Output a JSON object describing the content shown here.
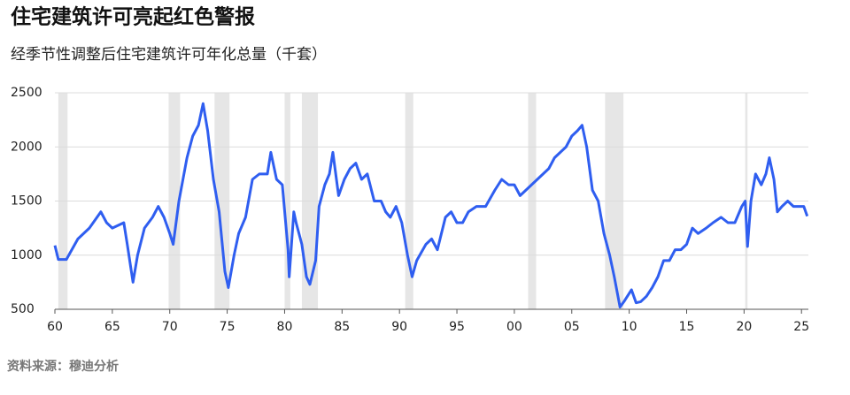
{
  "chart_data": {
    "type": "line",
    "title": "住宅建筑许可亮起红色警报",
    "subtitle": "经季节性调整后住宅建筑许可年化总量（千套）",
    "source": "资料来源：穆迪分析",
    "color": "#2f5ef0",
    "grid": true,
    "shade_color": "#e6e6e6",
    "recession_bands": [
      [
        1960.3,
        1961.1
      ],
      [
        1969.9,
        1970.9
      ],
      [
        1973.9,
        1975.2
      ],
      [
        1980.0,
        1980.5
      ],
      [
        1981.5,
        1982.9
      ],
      [
        1990.5,
        1991.2
      ],
      [
        2001.2,
        2001.9
      ],
      [
        2007.9,
        2009.5
      ],
      [
        2020.1,
        2020.3
      ]
    ],
    "xlim": [
      1960,
      2025.6
    ],
    "xticks": [
      {
        "value": 1960,
        "label": "60"
      },
      {
        "value": 1965,
        "label": "65"
      },
      {
        "value": 1970,
        "label": "70"
      },
      {
        "value": 1975,
        "label": "75"
      },
      {
        "value": 1980,
        "label": "80"
      },
      {
        "value": 1985,
        "label": "85"
      },
      {
        "value": 1990,
        "label": "90"
      },
      {
        "value": 1995,
        "label": "95"
      },
      {
        "value": 2000,
        "label": "00"
      },
      {
        "value": 2005,
        "label": "05"
      },
      {
        "value": 2010,
        "label": "10"
      },
      {
        "value": 2015,
        "label": "15"
      },
      {
        "value": 2020,
        "label": "20"
      },
      {
        "value": 2025,
        "label": "25"
      }
    ],
    "ylim": [
      500,
      2500
    ],
    "yticks": [
      500,
      1000,
      1500,
      2000,
      2500
    ],
    "x": [
      1960.0,
      1960.3,
      1961.0,
      1962.0,
      1963.0,
      1964.0,
      1964.5,
      1965.0,
      1966.0,
      1966.3,
      1966.8,
      1967.2,
      1967.8,
      1968.5,
      1969.0,
      1969.5,
      1970.0,
      1970.3,
      1970.8,
      1971.5,
      1972.0,
      1972.5,
      1972.9,
      1973.3,
      1973.8,
      1974.3,
      1974.8,
      1975.1,
      1975.6,
      1976.0,
      1976.6,
      1977.2,
      1977.8,
      1978.5,
      1978.8,
      1979.3,
      1979.8,
      1980.3,
      1980.4,
      1980.8,
      1981.0,
      1981.5,
      1981.9,
      1982.2,
      1982.7,
      1983.0,
      1983.5,
      1983.9,
      1984.2,
      1984.7,
      1985.2,
      1985.7,
      1986.2,
      1986.7,
      1987.2,
      1987.8,
      1988.4,
      1988.8,
      1989.2,
      1989.7,
      1990.2,
      1990.7,
      1991.1,
      1991.5,
      1992.3,
      1992.8,
      1993.3,
      1994.0,
      1994.5,
      1995.0,
      1995.5,
      1996.0,
      1996.7,
      1997.5,
      1998.3,
      1998.9,
      1999.5,
      2000.0,
      2000.5,
      2001.0,
      2001.5,
      2002.0,
      2002.5,
      2003.0,
      2003.5,
      2004.0,
      2004.5,
      2005.0,
      2005.5,
      2005.9,
      2006.3,
      2006.8,
      2007.3,
      2007.8,
      2008.3,
      2008.7,
      2009.2,
      2009.6,
      2010.2,
      2010.6,
      2011.0,
      2011.5,
      2012.0,
      2012.5,
      2013.0,
      2013.5,
      2014.0,
      2014.5,
      2015.0,
      2015.5,
      2016.0,
      2016.7,
      2017.3,
      2018.0,
      2018.6,
      2019.2,
      2019.8,
      2020.1,
      2020.3,
      2020.6,
      2021.0,
      2021.5,
      2021.9,
      2022.2,
      2022.6,
      2022.9,
      2023.3,
      2023.8,
      2024.3,
      2024.8,
      2025.2,
      2025.5
    ],
    "values": [
      1090,
      960,
      960,
      1150,
      1250,
      1400,
      1300,
      1250,
      1300,
      1100,
      750,
      1000,
      1250,
      1350,
      1450,
      1350,
      1200,
      1100,
      1500,
      1900,
      2100,
      2200,
      2400,
      2150,
      1700,
      1400,
      850,
      700,
      1000,
      1200,
      1350,
      1700,
      1750,
      1750,
      1950,
      1700,
      1650,
      1050,
      800,
      1400,
      1300,
      1100,
      800,
      730,
      950,
      1450,
      1650,
      1750,
      1950,
      1550,
      1700,
      1800,
      1850,
      1700,
      1750,
      1500,
      1500,
      1400,
      1350,
      1450,
      1300,
      1000,
      800,
      950,
      1100,
      1150,
      1050,
      1350,
      1400,
      1300,
      1300,
      1400,
      1450,
      1450,
      1600,
      1700,
      1650,
      1650,
      1550,
      1600,
      1650,
      1700,
      1750,
      1800,
      1900,
      1950,
      2000,
      2100,
      2150,
      2200,
      2000,
      1600,
      1500,
      1200,
      1000,
      800,
      520,
      580,
      680,
      560,
      570,
      620,
      700,
      800,
      950,
      950,
      1050,
      1050,
      1100,
      1250,
      1200,
      1250,
      1300,
      1350,
      1300,
      1300,
      1450,
      1500,
      1080,
      1500,
      1750,
      1650,
      1750,
      1900,
      1700,
      1400,
      1450,
      1500,
      1450,
      1450,
      1450,
      1360
    ]
  }
}
